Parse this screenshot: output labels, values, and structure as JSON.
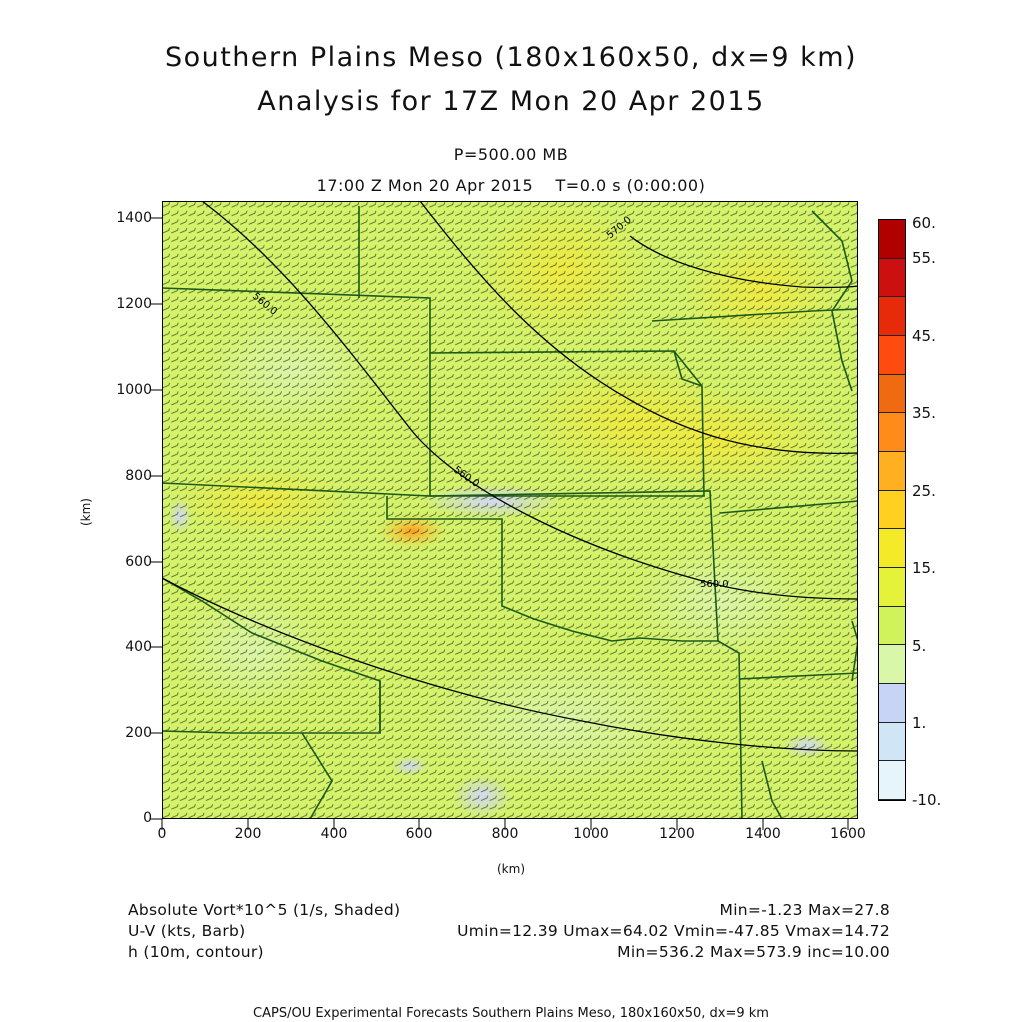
{
  "title_line1": "Southern Plains Meso (180x160x50, dx=9 km)",
  "title_line2": "Analysis for 17Z Mon 20 Apr 2015",
  "level": "P=500.00 MB",
  "time": "17:00 Z Mon 20 Apr 2015    T=0.0 s (0:00:00)",
  "axis": {
    "y_ticks": [
      "1400",
      "1200",
      "1000",
      "800",
      "600",
      "400",
      "200",
      "0"
    ],
    "x_ticks": [
      "0",
      "200",
      "400",
      "600",
      "800",
      "1000",
      "1200",
      "1400",
      "1600"
    ],
    "y_label": "(km)",
    "x_label": "(km)",
    "x_range_km": [
      0,
      1620
    ],
    "y_range_km": [
      0,
      1440
    ]
  },
  "colorbar": {
    "labels": [
      "60.",
      "55.",
      "45.",
      "35.",
      "25.",
      "15.",
      "5.",
      "1.",
      "-10."
    ],
    "colors": [
      "#b00000",
      "#cc1010",
      "#e62a0a",
      "#ff4a10",
      "#f06a12",
      "#ff8c18",
      "#ffb020",
      "#ffd020",
      "#f4ea28",
      "#e4f23a",
      "#d0f25a",
      "#d8f7a8",
      "#c8d4f6",
      "#d0e6f6",
      "#e6f4fb"
    ]
  },
  "contours": {
    "label_left": "560.0",
    "label_mid": "560.0",
    "label_right": "560.0",
    "label_top": "570.0"
  },
  "legend": {
    "field1_name": "Absolute Vort*10^5 (1/s, Shaded)",
    "field1_stats": "Min=-1.23 Max=27.8",
    "field2_name": "U-V (kts, Barb)",
    "field2_stats": "Umin=12.39 Umax=64.02 Vmin=-47.85 Vmax=14.72",
    "field3_name": "h (10m, contour)",
    "field3_stats": "Min=536.2 Max=573.9 inc=10.00"
  },
  "footer": "CAPS/OU Experimental Forecasts  Southern Plains Meso, 180x160x50, dx=9 km"
}
